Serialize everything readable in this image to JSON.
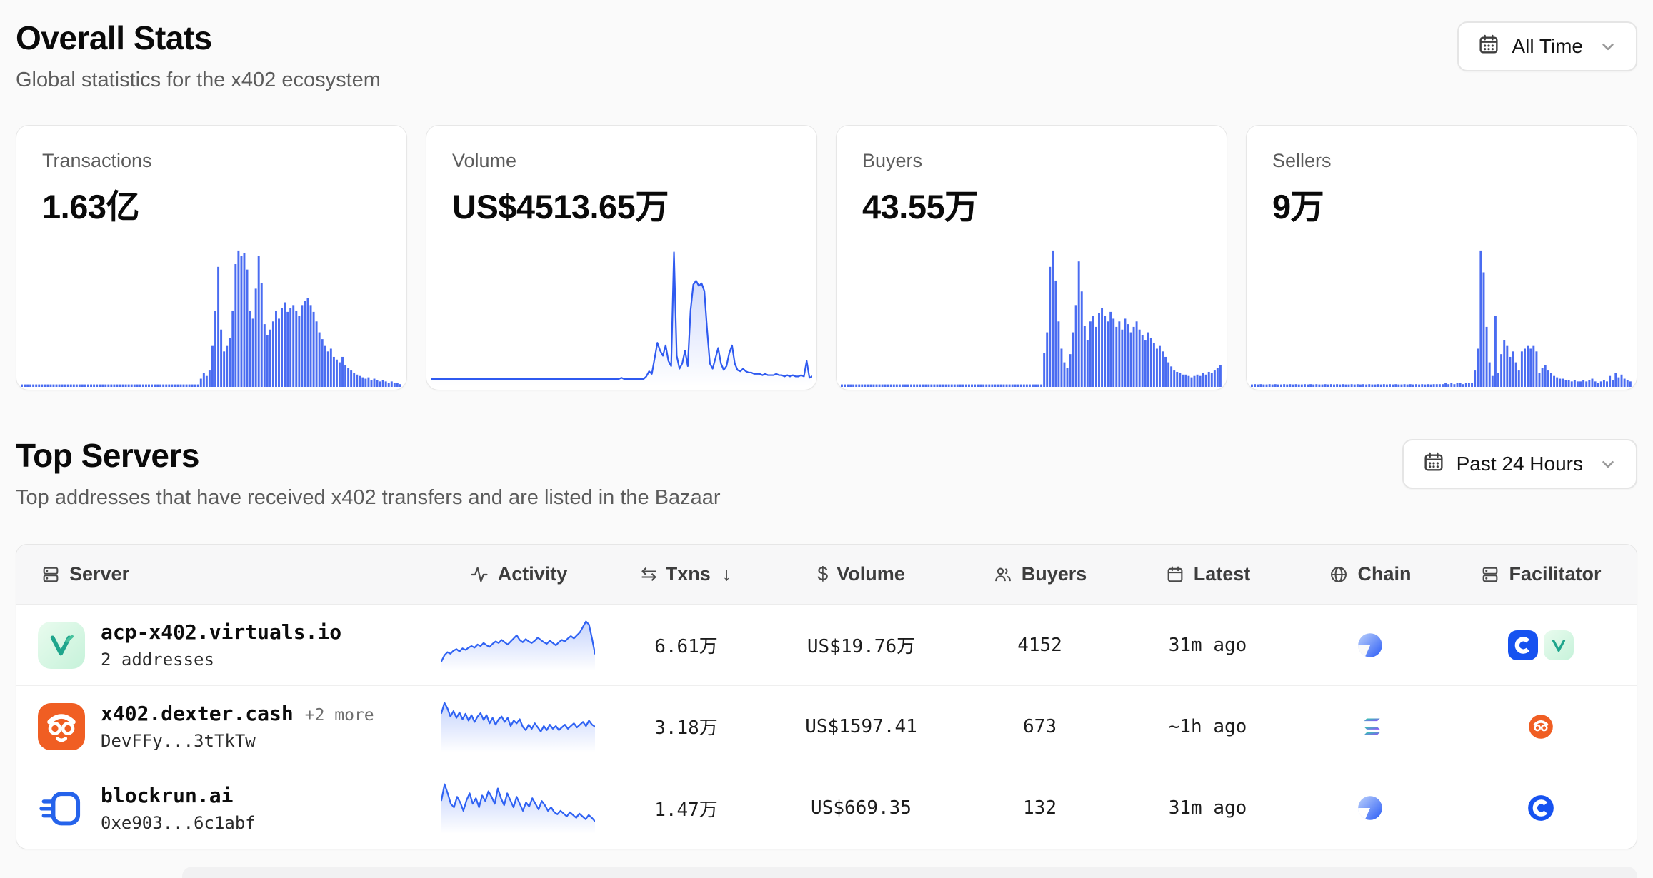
{
  "header": {
    "title": "Overall Stats",
    "subtitle": "Global statistics for the x402 ecosystem",
    "range_label": "All Time"
  },
  "stats_cards": [
    {
      "label": "Transactions",
      "value": "1.63亿"
    },
    {
      "label": "Volume",
      "value": "US$4513.65万"
    },
    {
      "label": "Buyers",
      "value": "43.55万"
    },
    {
      "label": "Sellers",
      "value": "9万"
    }
  ],
  "top_servers": {
    "title": "Top Servers",
    "subtitle": "Top addresses that have received x402 transfers and are listed in the Bazaar",
    "range_label": "Past 24 Hours"
  },
  "table": {
    "columns": [
      "Server",
      "Activity",
      "Txns",
      "Volume",
      "Buyers",
      "Latest",
      "Chain",
      "Facilitator"
    ],
    "sort_column": "Txns",
    "sort_direction": "desc",
    "rows": [
      {
        "name": "acp-x402.virtuals.io",
        "more": "",
        "sub": "2 addresses",
        "txns": "6.61万",
        "volume": "US$19.76万",
        "buyers": "4152",
        "latest": "31m ago",
        "chain": "base",
        "facilitators": [
          "coinbase",
          "virtuals"
        ]
      },
      {
        "name": "x402.dexter.cash",
        "more": "+2 more",
        "sub": "DevFFy...3tTkTw",
        "txns": "3.18万",
        "volume": "US$1597.41",
        "buyers": "673",
        "latest": "~1h ago",
        "chain": "solana",
        "facilitators": [
          "dexter"
        ]
      },
      {
        "name": "blockrun.ai",
        "more": "",
        "sub": "0xe903...6c1abf",
        "txns": "1.47万",
        "volume": "US$669.35",
        "buyers": "132",
        "latest": "31m ago",
        "chain": "base",
        "facilitators": [
          "coinbase"
        ]
      }
    ]
  },
  "icons": {
    "swap": "⇆",
    "dollar": "$",
    "sort_desc": "↓"
  },
  "colors": {
    "accent_blue": "#3e63f3",
    "bar_blue": "#4a6cf1",
    "page_bg": "#fafafa",
    "dexter_orange": "#f05e23",
    "coinbase_blue": "#1652f0",
    "virtuals_teal": "#1fa58c"
  },
  "chart_data": [
    {
      "id": "transactions-spark",
      "type": "bar",
      "title": "Transactions history (All Time)",
      "color": "#4a6cf1",
      "values": [
        1,
        1,
        1,
        1,
        1,
        1,
        1,
        1,
        1,
        1,
        1,
        1,
        1,
        1,
        1,
        1,
        1,
        1,
        1,
        1,
        1,
        1,
        1,
        1,
        1,
        1,
        1,
        1,
        1,
        1,
        1,
        1,
        1,
        1,
        1,
        1,
        1,
        1,
        1,
        1,
        1,
        1,
        1,
        1,
        1,
        1,
        1,
        1,
        1,
        1,
        1,
        1,
        1,
        1,
        1,
        1,
        1,
        1,
        1,
        1,
        1,
        1,
        6,
        10,
        8,
        12,
        30,
        56,
        88,
        42,
        26,
        30,
        36,
        56,
        90,
        100,
        96,
        98,
        86,
        56,
        50,
        72,
        96,
        76,
        46,
        38,
        42,
        48,
        56,
        50,
        58,
        62,
        55,
        58,
        60,
        56,
        52,
        60,
        63,
        65,
        60,
        55,
        48,
        40,
        35,
        30,
        26,
        28,
        22,
        20,
        18,
        22,
        16,
        14,
        12,
        10,
        9,
        8,
        7,
        6,
        7,
        5,
        6,
        5,
        4,
        5,
        4,
        3,
        4,
        3,
        3,
        2
      ]
    },
    {
      "id": "volume-spark",
      "type": "line",
      "title": "Volume history (All Time)",
      "color": "#2f5af0",
      "values": [
        2,
        2,
        2,
        2,
        2,
        2,
        2,
        2,
        2,
        2,
        2,
        2,
        2,
        2,
        2,
        2,
        2,
        2,
        2,
        2,
        2,
        2,
        2,
        2,
        2,
        2,
        2,
        2,
        2,
        2,
        2,
        2,
        2,
        2,
        2,
        2,
        2,
        2,
        2,
        2,
        2,
        2,
        2,
        2,
        2,
        2,
        2,
        2,
        2,
        2,
        2,
        2,
        2,
        2,
        2,
        2,
        2,
        2,
        2,
        2,
        2,
        2,
        2,
        2,
        2,
        2,
        2,
        2,
        2,
        3,
        2,
        2,
        2,
        2,
        2,
        2,
        2,
        2,
        4,
        8,
        6,
        18,
        30,
        24,
        20,
        28,
        16,
        12,
        100,
        20,
        10,
        14,
        24,
        12,
        55,
        75,
        78,
        74,
        76,
        70,
        40,
        14,
        10,
        18,
        26,
        14,
        9,
        12,
        22,
        28,
        14,
        9,
        8,
        10,
        8,
        7,
        7,
        6,
        6,
        6,
        5,
        6,
        5,
        5,
        5,
        6,
        5,
        5,
        4,
        5,
        4,
        5,
        4,
        4,
        5,
        4,
        16,
        3,
        4
      ]
    },
    {
      "id": "buyers-spark",
      "type": "bar",
      "title": "Buyers history (All Time)",
      "color": "#4a6cf1",
      "values": [
        1,
        1,
        1,
        1,
        1,
        1,
        1,
        1,
        1,
        1,
        1,
        1,
        1,
        1,
        1,
        1,
        1,
        1,
        1,
        1,
        1,
        1,
        1,
        1,
        1,
        1,
        1,
        1,
        1,
        1,
        1,
        1,
        1,
        1,
        1,
        1,
        1,
        1,
        1,
        1,
        1,
        1,
        1,
        1,
        1,
        1,
        1,
        1,
        1,
        1,
        1,
        1,
        1,
        1,
        1,
        1,
        1,
        1,
        1,
        1,
        1,
        1,
        1,
        1,
        1,
        1,
        1,
        1,
        1,
        1,
        25,
        40,
        88,
        100,
        78,
        48,
        28,
        18,
        14,
        24,
        40,
        60,
        92,
        70,
        45,
        34,
        48,
        52,
        44,
        54,
        58,
        52,
        48,
        55,
        50,
        44,
        48,
        42,
        50,
        46,
        40,
        44,
        48,
        42,
        38,
        34,
        40,
        36,
        32,
        28,
        30,
        26,
        22,
        18,
        15,
        12,
        11,
        10,
        9,
        9,
        8,
        7,
        8,
        9,
        8,
        10,
        9,
        11,
        10,
        12,
        14,
        16
      ]
    },
    {
      "id": "sellers-spark",
      "type": "bar",
      "title": "Sellers history (All Time)",
      "color": "#4a6cf1",
      "values": [
        1,
        2,
        1,
        2,
        1,
        1,
        2,
        1,
        2,
        1,
        1,
        2,
        1,
        2,
        1,
        2,
        1,
        1,
        2,
        1,
        2,
        1,
        2,
        1,
        1,
        2,
        1,
        2,
        1,
        2,
        1,
        2,
        1,
        1,
        2,
        1,
        2,
        1,
        2,
        1,
        2,
        1,
        1,
        2,
        1,
        2,
        1,
        2,
        1,
        2,
        1,
        1,
        2,
        1,
        2,
        1,
        2,
        1,
        2,
        1,
        2,
        1,
        2,
        2,
        2,
        2,
        3,
        2,
        3,
        2,
        3,
        3,
        2,
        3,
        3,
        3,
        12,
        28,
        100,
        84,
        44,
        18,
        8,
        52,
        10,
        24,
        34,
        30,
        22,
        26,
        18,
        12,
        26,
        28,
        30,
        28,
        30,
        26,
        10,
        14,
        16,
        12,
        10,
        8,
        7,
        6,
        6,
        5,
        5,
        4,
        5,
        4,
        4,
        5,
        4,
        5,
        6,
        4,
        3,
        4,
        5,
        4,
        8,
        5,
        10,
        7,
        9,
        6,
        5,
        4
      ]
    },
    {
      "id": "row0-activity",
      "type": "line",
      "title": "acp-x402.virtuals.io activity (24h)",
      "color": "#2f62f3",
      "values": [
        10,
        18,
        22,
        20,
        24,
        26,
        23,
        27,
        25,
        28,
        30,
        28,
        32,
        30,
        34,
        31,
        29,
        33,
        36,
        34,
        38,
        35,
        32,
        36,
        40,
        44,
        38,
        35,
        39,
        36,
        34,
        37,
        41,
        38,
        35,
        33,
        37,
        34,
        31,
        35,
        38,
        36,
        40,
        43,
        40,
        44,
        48,
        55,
        62,
        58,
        40,
        20
      ]
    },
    {
      "id": "row1-activity",
      "type": "line",
      "title": "x402.dexter.cash activity (24h)",
      "color": "#2f62f3",
      "values": [
        55,
        70,
        62,
        50,
        58,
        48,
        56,
        46,
        54,
        44,
        52,
        42,
        50,
        55,
        45,
        52,
        40,
        48,
        38,
        46,
        50,
        42,
        48,
        36,
        44,
        40,
        46,
        35,
        30,
        38,
        32,
        40,
        34,
        28,
        36,
        30,
        38,
        32,
        36,
        30,
        34,
        38,
        32,
        36,
        40,
        34,
        38,
        42,
        36,
        44,
        38,
        35
      ]
    },
    {
      "id": "row2-activity",
      "type": "line",
      "title": "blockrun.ai activity (24h)",
      "color": "#2f62f3",
      "values": [
        45,
        68,
        55,
        40,
        35,
        50,
        42,
        30,
        45,
        55,
        40,
        48,
        35,
        52,
        44,
        58,
        50,
        40,
        62,
        48,
        38,
        55,
        45,
        35,
        50,
        40,
        30,
        42,
        36,
        48,
        40,
        32,
        44,
        38,
        30,
        35,
        28,
        25,
        30,
        26,
        22,
        28,
        24,
        20,
        26,
        22,
        18,
        24,
        20,
        15
      ]
    }
  ]
}
